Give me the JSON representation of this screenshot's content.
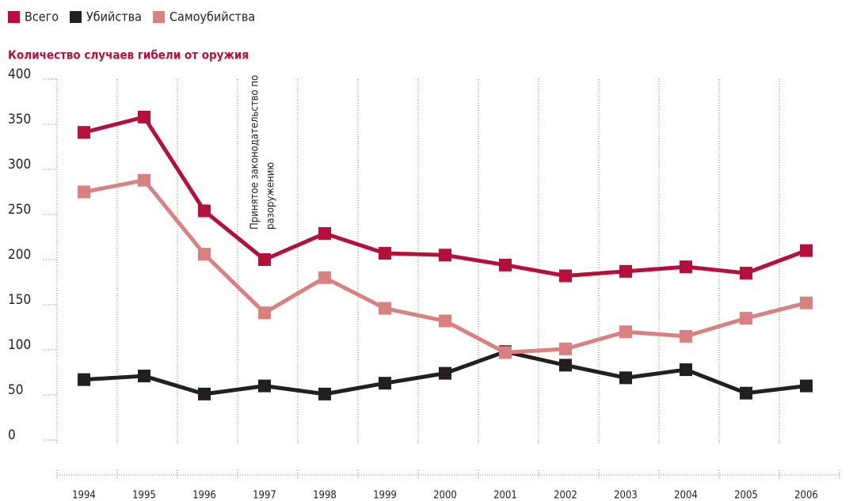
{
  "chart_data": {
    "type": "line",
    "title": "Количество случаев гибели от оружия",
    "categories": [
      "1994",
      "1995",
      "1996",
      "1997",
      "1998",
      "1999",
      "2000",
      "2001",
      "2002",
      "2003",
      "2004",
      "2005",
      "2006"
    ],
    "series": [
      {
        "name": "Всего",
        "color": "#b5103c",
        "values": [
          341,
          358,
          254,
          200,
          229,
          207,
          205,
          194,
          182,
          187,
          192,
          185,
          210
        ]
      },
      {
        "name": "Убийства",
        "color": "#231f20",
        "values": [
          67,
          71,
          51,
          60,
          51,
          63,
          74,
          98,
          83,
          69,
          78,
          52,
          60
        ]
      },
      {
        "name": "Самоубийства",
        "color": "#d98080",
        "values": [
          275,
          288,
          206,
          141,
          180,
          146,
          132,
          97,
          101,
          120,
          115,
          135,
          152
        ]
      }
    ],
    "annotation": [
      "Принятое законодательство по",
      "разоружению"
    ],
    "ylim": [
      0,
      400
    ],
    "yticks": [
      0,
      50,
      100,
      150,
      200,
      250,
      300,
      350,
      400
    ],
    "grid": true,
    "legend": "top-left"
  }
}
